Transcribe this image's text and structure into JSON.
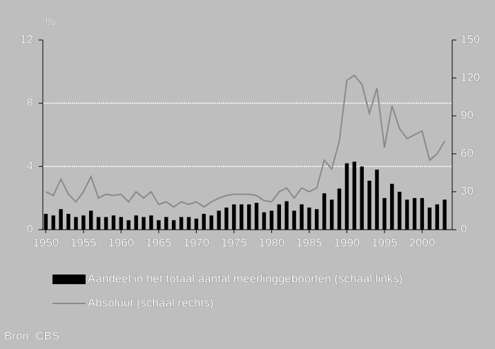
{
  "chart_data": {
    "type": "bar",
    "ylabel": "%",
    "x": [
      1950,
      1951,
      1952,
      1953,
      1954,
      1955,
      1956,
      1957,
      1958,
      1959,
      1960,
      1961,
      1962,
      1963,
      1964,
      1965,
      1966,
      1967,
      1968,
      1969,
      1970,
      1971,
      1972,
      1973,
      1974,
      1975,
      1976,
      1977,
      1978,
      1979,
      1980,
      1981,
      1982,
      1983,
      1984,
      1985,
      1986,
      1987,
      1988,
      1989,
      1990,
      1991,
      1992,
      1993,
      1994,
      1995,
      1996,
      1997,
      1998,
      1999,
      2000,
      2001,
      2002,
      2003
    ],
    "series": [
      {
        "name": "Aandeel in het totaal aantal meerlinggeboorten (schaal links)",
        "type": "bar",
        "color": "#000000",
        "values": [
          1.0,
          0.9,
          1.3,
          1.0,
          0.8,
          0.9,
          1.2,
          0.8,
          0.8,
          0.9,
          0.8,
          0.6,
          0.9,
          0.8,
          0.9,
          0.6,
          0.8,
          0.6,
          0.8,
          0.8,
          0.7,
          1.0,
          0.9,
          1.2,
          1.4,
          1.6,
          1.6,
          1.6,
          1.7,
          1.1,
          1.2,
          1.6,
          1.8,
          1.2,
          1.6,
          1.4,
          1.3,
          2.3,
          1.9,
          2.6,
          4.2,
          4.3,
          4.0,
          3.1,
          3.8,
          2.0,
          2.9,
          2.4,
          1.9,
          2.0,
          2.0,
          1.4,
          1.6,
          1.9
        ]
      },
      {
        "name": "Absoluut (schaal rechts)",
        "type": "line",
        "axis": "y2",
        "color": "#8a8a8a",
        "values": [
          30,
          27,
          40,
          28,
          22,
          30,
          42,
          25,
          28,
          27,
          28,
          22,
          30,
          25,
          30,
          20,
          22,
          18,
          22,
          20,
          22,
          18,
          22,
          25,
          27,
          28,
          28,
          28,
          27,
          23,
          22,
          30,
          33,
          25,
          33,
          30,
          33,
          55,
          48,
          70,
          118,
          122,
          115,
          92,
          112,
          65,
          98,
          80,
          72,
          75,
          78,
          55,
          60,
          70
        ]
      }
    ],
    "xlim": [
      1949.6,
      2004
    ],
    "xticks": [
      1950,
      1955,
      1960,
      1965,
      1970,
      1975,
      1980,
      1985,
      1990,
      1995,
      2000
    ],
    "ylim": [
      0,
      12
    ],
    "yticks": [
      0,
      4,
      8,
      12
    ],
    "y2lim": [
      0,
      150
    ],
    "y2ticks": [
      0,
      30,
      60,
      90,
      120,
      150
    ],
    "grid": true,
    "source": "Bron: CBS"
  }
}
